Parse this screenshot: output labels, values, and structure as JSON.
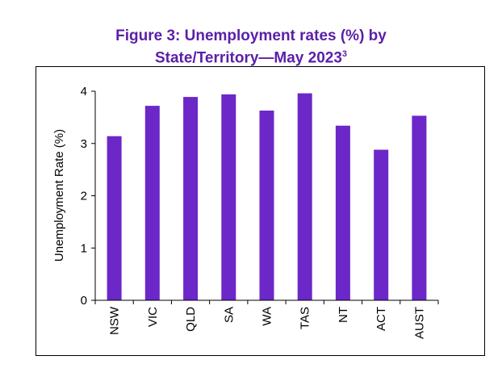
{
  "title": {
    "line1": "Figure 3: Unemployment rates (%) by",
    "line2": "State/Territory—May 2023",
    "footnote": "3"
  },
  "colors": {
    "bar": "#6c27c8",
    "title": "#5b1fa8"
  },
  "chart_data": {
    "type": "bar",
    "title": "Figure 3: Unemployment rates (%) by State/Territory—May 2023",
    "xlabel": "",
    "ylabel": "Unemployment Rate (%)",
    "categories": [
      "NSW",
      "VIC",
      "QLD",
      "SA",
      "WA",
      "TAS",
      "NT",
      "ACT",
      "AUST"
    ],
    "values": [
      3.14,
      3.72,
      3.89,
      3.94,
      3.63,
      3.96,
      3.34,
      2.88,
      3.53
    ],
    "ylim": [
      0,
      4
    ],
    "yticks": [
      0,
      1,
      2,
      3,
      4
    ],
    "grid": false,
    "legend": "none"
  }
}
